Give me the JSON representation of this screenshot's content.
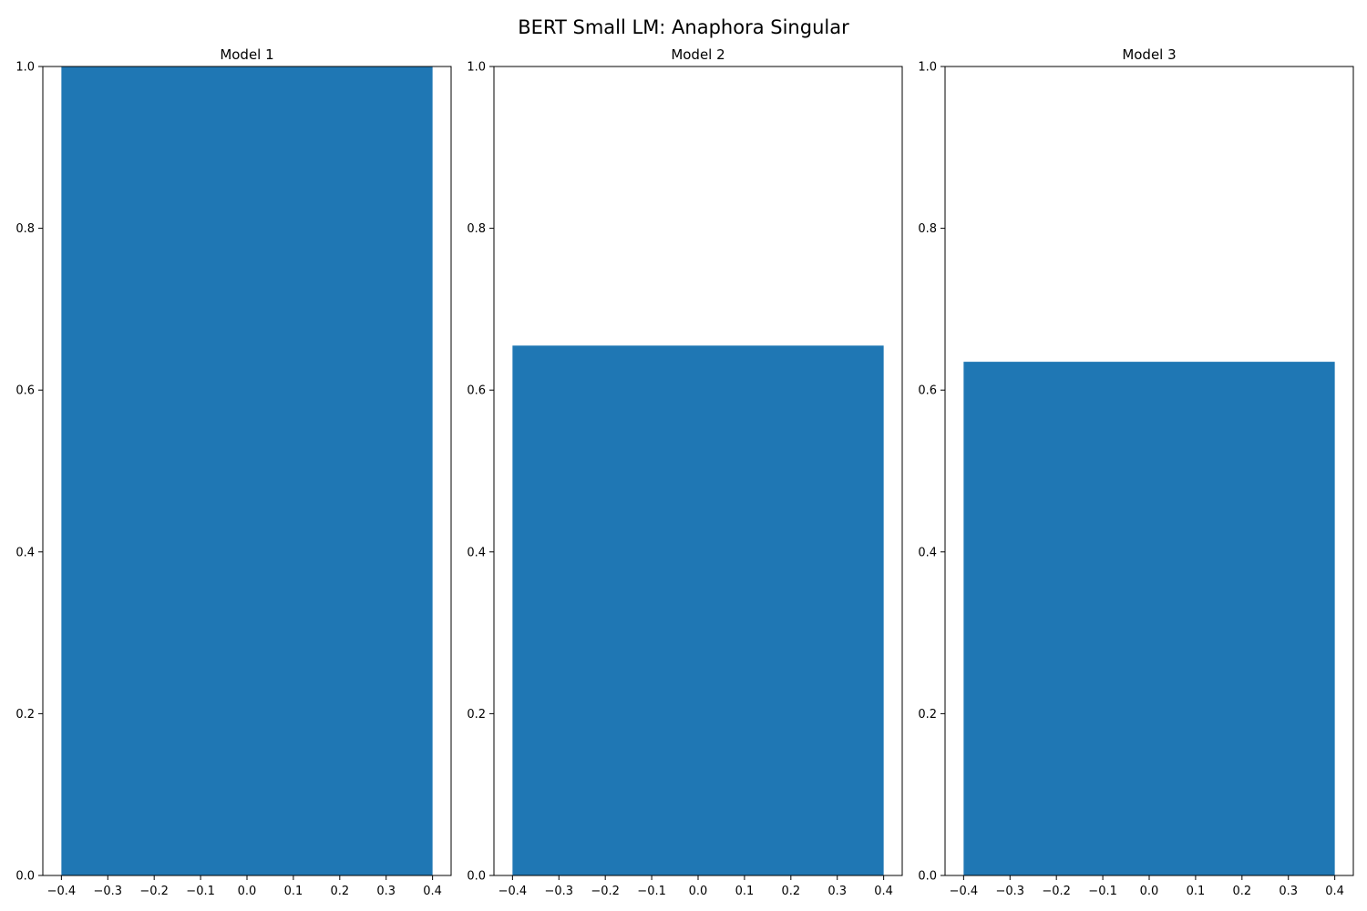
{
  "figure": {
    "title": "BERT Small LM: Anaphora Singular"
  },
  "chart_data": [
    {
      "type": "bar",
      "title": "Model 1",
      "xlabel": "",
      "ylabel": "",
      "x": [
        0.0
      ],
      "values": [
        1.0
      ],
      "bar_width": 0.8,
      "xlim": [
        -0.44,
        0.44
      ],
      "ylim": [
        0.0,
        1.0
      ],
      "xticks": [
        -0.4,
        -0.3,
        -0.2,
        -0.1,
        0.0,
        0.1,
        0.2,
        0.3,
        0.4
      ],
      "yticks": [
        0.0,
        0.2,
        0.4,
        0.6,
        0.8,
        1.0
      ],
      "xtick_labels": [
        "−0.4",
        "−0.3",
        "−0.2",
        "−0.1",
        "0.0",
        "0.1",
        "0.2",
        "0.3",
        "0.4"
      ],
      "ytick_labels": [
        "0.0",
        "0.2",
        "0.4",
        "0.6",
        "0.8",
        "1.0"
      ],
      "bar_color": "#1f77b4",
      "grid": false
    },
    {
      "type": "bar",
      "title": "Model 2",
      "xlabel": "",
      "ylabel": "",
      "x": [
        0.0
      ],
      "values": [
        0.655
      ],
      "bar_width": 0.8,
      "xlim": [
        -0.44,
        0.44
      ],
      "ylim": [
        0.0,
        1.0
      ],
      "xticks": [
        -0.4,
        -0.3,
        -0.2,
        -0.1,
        0.0,
        0.1,
        0.2,
        0.3,
        0.4
      ],
      "yticks": [
        0.0,
        0.2,
        0.4,
        0.6,
        0.8,
        1.0
      ],
      "xtick_labels": [
        "−0.4",
        "−0.3",
        "−0.2",
        "−0.1",
        "0.0",
        "0.1",
        "0.2",
        "0.3",
        "0.4"
      ],
      "ytick_labels": [
        "0.0",
        "0.2",
        "0.4",
        "0.6",
        "0.8",
        "1.0"
      ],
      "bar_color": "#1f77b4",
      "grid": false
    },
    {
      "type": "bar",
      "title": "Model 3",
      "xlabel": "",
      "ylabel": "",
      "x": [
        0.0
      ],
      "values": [
        0.635
      ],
      "bar_width": 0.8,
      "xlim": [
        -0.44,
        0.44
      ],
      "ylim": [
        0.0,
        1.0
      ],
      "xticks": [
        -0.4,
        -0.3,
        -0.2,
        -0.1,
        0.0,
        0.1,
        0.2,
        0.3,
        0.4
      ],
      "yticks": [
        0.0,
        0.2,
        0.4,
        0.6,
        0.8,
        1.0
      ],
      "xtick_labels": [
        "−0.4",
        "−0.3",
        "−0.2",
        "−0.1",
        "0.0",
        "0.1",
        "0.2",
        "0.3",
        "0.4"
      ],
      "ytick_labels": [
        "0.0",
        "0.2",
        "0.4",
        "0.6",
        "0.8",
        "1.0"
      ],
      "bar_color": "#1f77b4",
      "grid": false
    }
  ]
}
